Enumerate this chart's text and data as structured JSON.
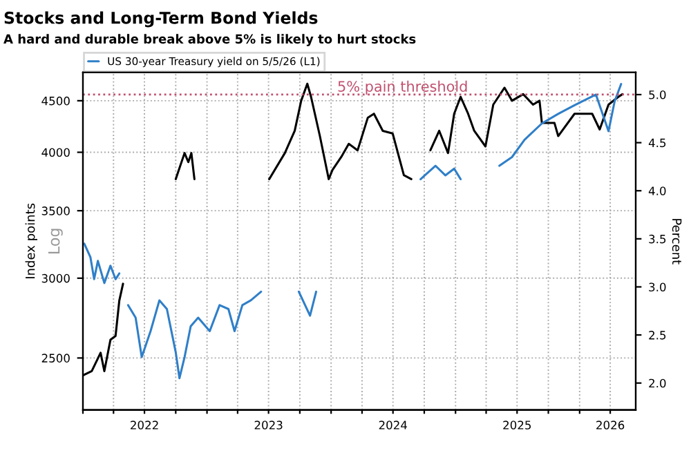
{
  "chart_data": {
    "type": "line",
    "title": "Stocks and Long-Term Bond Yields",
    "subtitle": "A hard and durable break above 5% is likely to hurt stocks",
    "ylabel": "Index points",
    "y2label": "Percent",
    "annotations": [
      "Log"
    ],
    "log": "y",
    "grid": true,
    "legend": "top left",
    "line_style": "solid",
    "marker": "none",
    "xlim": [
      "2022-01-01",
      "2026-06-15"
    ],
    "xticks": [
      {
        "value": "2022-01-01",
        "label": null
      },
      {
        "value": "2022-04-01",
        "label": null
      },
      {
        "value": "2022-07-01",
        "label": "2022"
      },
      {
        "value": "2022-10-01",
        "label": null
      },
      {
        "value": "2023-01-01",
        "label": null
      },
      {
        "value": "2023-04-01",
        "label": null
      },
      {
        "value": "2023-07-01",
        "label": "2023"
      },
      {
        "value": "2023-10-01",
        "label": null
      },
      {
        "value": "2024-01-01",
        "label": null
      },
      {
        "value": "2024-04-01",
        "label": null
      },
      {
        "value": "2024-07-01",
        "label": "2024"
      },
      {
        "value": "2024-10-01",
        "label": null
      },
      {
        "value": "2025-01-01",
        "label": null
      },
      {
        "value": "2025-04-01",
        "label": null
      },
      {
        "value": "2025-07-01",
        "label": "2025"
      },
      {
        "value": "2025-10-01",
        "label": null
      },
      {
        "value": "2026-01-01",
        "label": null
      },
      {
        "value": "2026-04-01",
        "label": "2026"
      }
    ],
    "ylim": [
      2220,
      4800
    ],
    "yticks": [
      2500,
      3000,
      3500,
      4000,
      4500
    ],
    "y2lim": [
      1.72,
      5.23
    ],
    "y2ticks": [
      {
        "value": 2,
        "label": "2.0"
      },
      {
        "value": 2.5,
        "label": "2.5"
      },
      {
        "value": 3,
        "label": "3.0"
      },
      {
        "value": 3.5,
        "label": "3.5"
      },
      {
        "value": 4,
        "label": "4.0"
      },
      {
        "value": 4.5,
        "label": "4.5"
      },
      {
        "value": 5,
        "label": "5.0"
      }
    ],
    "ref_lines": [
      {
        "axis": "y2",
        "value": 5.0,
        "label": "5% pain threshold",
        "color": "#c0506e",
        "line_style": "dotted"
      }
    ],
    "series": [
      {
        "color": "#000000",
        "axis": "y",
        "x": [
          "2022-01-03",
          "2022-01-27",
          "2022-02-22",
          "2022-03-05",
          "2022-03-23",
          "2022-04-07",
          "2022-04-18",
          "2022-04-29",
          "2022-06-01",
          "2022-10-01",
          "2022-10-27",
          "2022-11-07",
          "2022-11-16",
          "2022-11-25",
          "2023-03-01",
          "2023-07-03",
          "2023-08-18",
          "2023-09-16",
          "2023-10-05",
          "2023-10-23",
          "2023-11-03",
          "2023-11-29",
          "2023-12-25",
          "2024-01-05",
          "2024-01-31",
          "2024-02-22",
          "2024-03-19",
          "2024-04-18",
          "2024-05-06",
          "2024-06-01",
          "2024-06-30",
          "2024-08-02",
          "2024-08-24",
          "2024-09-20",
          "2024-10-19",
          "2024-11-14",
          "2024-12-10",
          "2024-12-28",
          "2025-01-16",
          "2025-02-07",
          "2025-02-25",
          "2025-03-30",
          "2025-04-22",
          "2025-05-25",
          "2025-06-16",
          "2025-07-19",
          "2025-08-17",
          "2025-09-05",
          "2025-09-12",
          "2025-10-19",
          "2025-10-30",
          "2025-12-17",
          "2026-02-07",
          "2026-03-01",
          "2026-03-27",
          "2026-04-25",
          "2026-05-07"
        ],
        "values": [
          2404,
          2426,
          2530,
          2426,
          2606,
          2629,
          2850,
          2962,
          null,
          3762,
          3993,
          3911,
          3993,
          3762,
          null,
          3762,
          3993,
          4201,
          4500,
          4678,
          4540,
          4151,
          3762,
          3842,
          3958,
          4078,
          4018,
          4329,
          4368,
          4201,
          4176,
          3796,
          3762,
          null,
          4018,
          4201,
          3993,
          4368,
          4540,
          4368,
          4201,
          4054,
          4460,
          4636,
          4500,
          4568,
          4460,
          4500,
          4277,
          4277,
          4151,
          4368,
          4368,
          4214,
          4460,
          4540,
          4568
        ]
      },
      {
        "name": "US 30-year Treasury yield on 5/5/26 (L1)",
        "color": "#2f7fc8",
        "axis": "y2",
        "x": [
          "2022-01-05",
          "2022-01-23",
          "2022-02-03",
          "2022-02-14",
          "2022-03-05",
          "2022-03-23",
          "2022-04-07",
          "2022-04-18",
          "2022-05-01",
          "2022-05-14",
          "2022-06-05",
          "2022-06-23",
          "2022-07-19",
          "2022-08-14",
          "2022-09-05",
          "2022-10-01",
          "2022-10-12",
          "2022-10-27",
          "2022-11-14",
          "2022-12-06",
          "2023-01-09",
          "2023-02-07",
          "2023-03-05",
          "2023-03-23",
          "2023-04-15",
          "2023-05-10",
          "2023-06-09",
          "2023-08-01",
          "2023-09-28",
          "2023-10-31",
          "2023-11-18",
          "2024-06-01",
          "2024-09-20",
          "2024-11-03",
          "2024-12-02",
          "2024-12-28",
          "2025-01-16",
          "2025-03-01",
          "2025-05-10",
          "2025-06-16",
          "2025-07-23",
          "2025-09-12",
          "2025-10-30",
          "2025-12-17",
          "2026-02-18",
          "2026-03-27",
          "2026-04-14",
          "2026-05-03"
        ],
        "values": [
          3.45,
          3.31,
          3.08,
          3.27,
          3.04,
          3.22,
          3.08,
          3.14,
          null,
          2.81,
          2.68,
          2.27,
          2.54,
          2.86,
          2.77,
          2.32,
          2.05,
          2.27,
          2.59,
          2.68,
          2.54,
          2.81,
          2.77,
          2.54,
          2.81,
          2.86,
          2.95,
          null,
          2.95,
          2.7,
          2.95,
          null,
          4.12,
          4.26,
          4.16,
          4.23,
          4.12,
          null,
          4.26,
          4.35,
          4.53,
          4.7,
          4.8,
          4.89,
          5.0,
          4.62,
          4.93,
          5.11
        ]
      }
    ]
  }
}
